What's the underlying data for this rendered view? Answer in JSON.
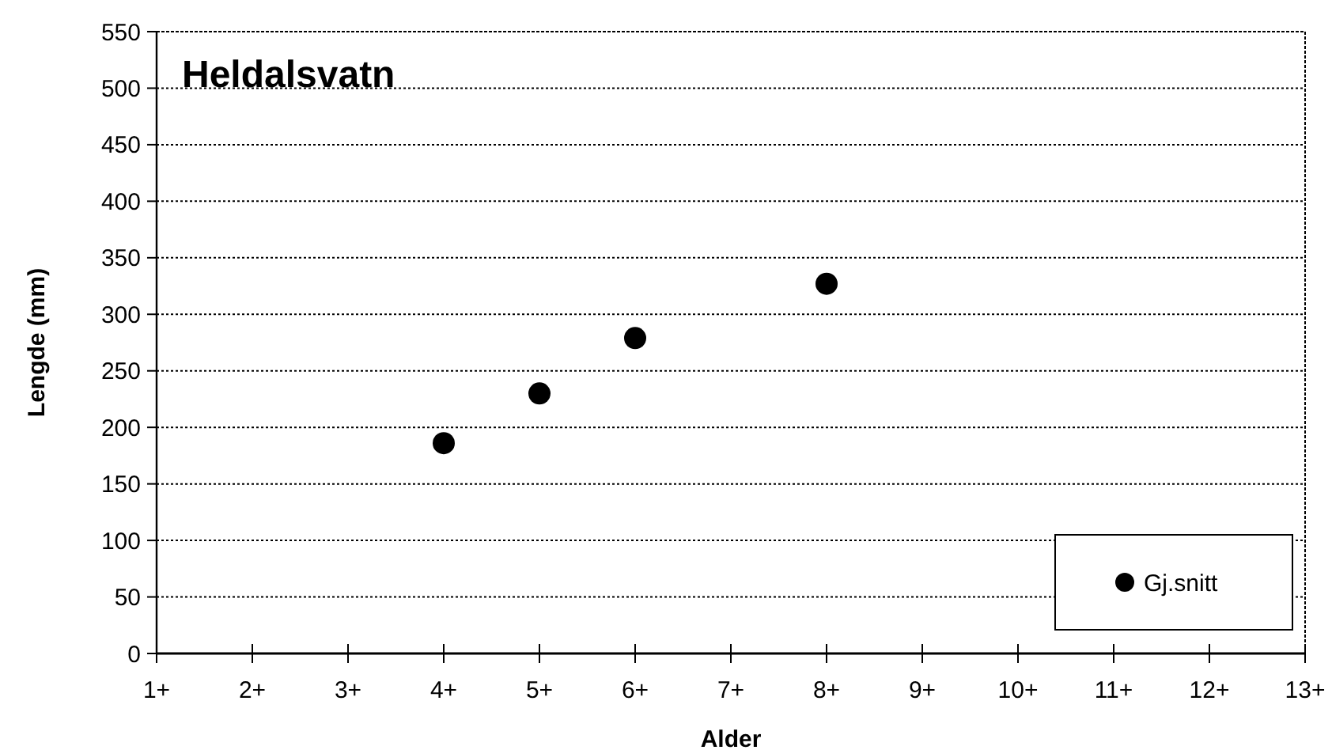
{
  "chart_data": {
    "type": "scatter",
    "title": "Heldalsvatn",
    "xlabel": "Alder",
    "ylabel": "Lengde (mm)",
    "categories": [
      "1+",
      "2+",
      "3+",
      "4+",
      "5+",
      "6+",
      "7+",
      "8+",
      "9+",
      "10+",
      "11+",
      "12+",
      "13+"
    ],
    "series": [
      {
        "name": "Gj.snitt",
        "color": "#000000",
        "x": [
          "4+",
          "5+",
          "6+",
          "8+"
        ],
        "values": [
          186,
          230,
          279,
          327
        ]
      }
    ],
    "ylim": [
      0,
      550
    ],
    "yticks": [
      0,
      50,
      100,
      150,
      200,
      250,
      300,
      350,
      400,
      450,
      500,
      550
    ],
    "grid": "y",
    "legend": "bottom right",
    "marker": "circle"
  }
}
